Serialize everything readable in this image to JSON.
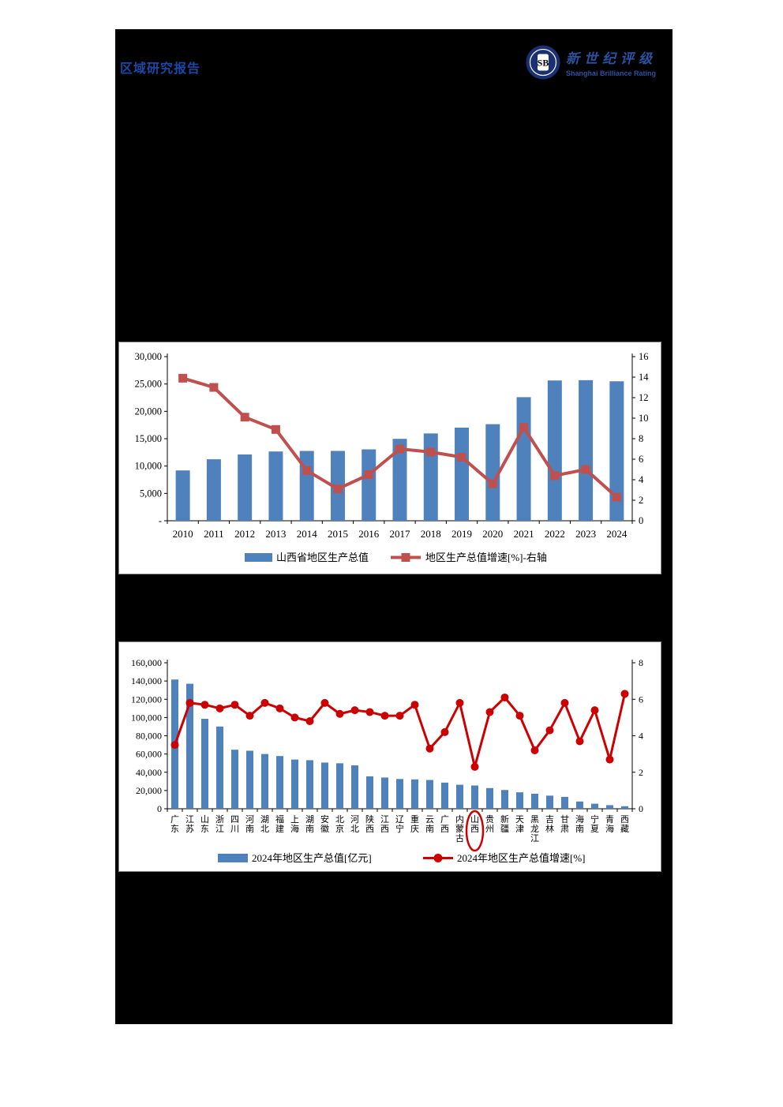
{
  "header": {
    "title": "区域研究报告"
  },
  "logo": {
    "name": "新世纪评级",
    "subtitle": "Shanghai Brilliance Rating",
    "monogram": "SB"
  },
  "colors": {
    "title_blue": "#1c47a6",
    "logo_blue": "#2a52a0",
    "seal_navy": "#1b2f73",
    "bar_blue": "#4f81bd",
    "line_red_dark": "#c0504d",
    "line_red_bright": "#cc0000",
    "page_black": "#000000",
    "panel_border_gray": "#8a8a8a"
  },
  "chart_data": [
    {
      "type": "bar",
      "combo": "bar+line",
      "title": "",
      "xlabel": "",
      "ylabel": "",
      "grid": false,
      "legend_position": "bottom",
      "categories": [
        "2010",
        "2011",
        "2012",
        "2013",
        "2014",
        "2015",
        "2016",
        "2017",
        "2018",
        "2019",
        "2020",
        "2021",
        "2022",
        "2023",
        "2024"
      ],
      "series": [
        {
          "name": "山西省地区生产总值",
          "type": "bar",
          "axis": "left",
          "color": "#4f81bd",
          "values": [
            9200.9,
            11237.6,
            12112.8,
            12665.3,
            12761.5,
            12766.5,
            13050.4,
            14973.5,
            15958.1,
            17026.7,
            17651.9,
            22590.2,
            25642.6,
            25698.2,
            25494.7
          ]
        },
        {
          "name": "地区生产总值增速[%]-右轴",
          "type": "line",
          "axis": "right",
          "marker": "square",
          "color": "#c0504d",
          "values": [
            13.9,
            13.0,
            10.1,
            8.9,
            4.9,
            3.1,
            4.5,
            7.0,
            6.7,
            6.2,
            3.6,
            9.1,
            4.4,
            5.0,
            2.3
          ]
        }
      ],
      "left_axis": {
        "min": 0,
        "max": 30000,
        "step": 5000,
        "zero_label": "-",
        "tick_labels": [
          "-",
          "5,000",
          "10,000",
          "15,000",
          "20,000",
          "25,000",
          "30,000"
        ]
      },
      "right_axis": {
        "min": 0,
        "max": 16,
        "step": 2,
        "tick_labels": [
          "0",
          "2",
          "4",
          "6",
          "8",
          "10",
          "12",
          "14",
          "16"
        ]
      }
    },
    {
      "type": "bar",
      "combo": "bar+line",
      "title": "",
      "xlabel": "",
      "ylabel": "",
      "grid": false,
      "legend_position": "bottom",
      "categories": [
        "广东",
        "江苏",
        "山东",
        "浙江",
        "四川",
        "河南",
        "湖北",
        "福建",
        "上海",
        "湖南",
        "安徽",
        "北京",
        "河北",
        "陕西",
        "江西",
        "辽宁",
        "重庆",
        "云南",
        "广西",
        "内蒙古",
        "山西",
        "贵州",
        "新疆",
        "天津",
        "黑龙江",
        "吉林",
        "甘肃",
        "海南",
        "宁夏",
        "青海",
        "西藏"
      ],
      "series": [
        {
          "name": "2024年地区生产总值[亿元]",
          "type": "bar",
          "axis": "left",
          "color": "#4f81bd",
          "values": [
            141633.8,
            137008.0,
            98566.1,
            90131.0,
            64697.0,
            63589.9,
            60012.9,
            57761.0,
            53926.7,
            53231.0,
            50625.0,
            49843.1,
            47526.9,
            35538.8,
            34202.5,
            32612.7,
            32193.2,
            31534.1,
            28649.4,
            26314.6,
            25494.7,
            22667.1,
            20534.1,
            18024.3,
            16476.9,
            14361.2,
            13002.9,
            7935.7,
            5502.8,
            3950.8,
            2764.9
          ]
        },
        {
          "name": "2024年地区生产总值增速[%]",
          "type": "line",
          "axis": "right",
          "marker": "circle",
          "color": "#cc0000",
          "values": [
            3.5,
            5.8,
            5.7,
            5.5,
            5.7,
            5.1,
            5.8,
            5.5,
            5.0,
            4.8,
            5.8,
            5.2,
            5.4,
            5.3,
            5.1,
            5.1,
            5.7,
            3.3,
            4.2,
            5.8,
            2.3,
            5.3,
            6.1,
            5.1,
            3.2,
            4.3,
            5.8,
            3.7,
            5.4,
            2.7,
            6.3
          ]
        }
      ],
      "left_axis": {
        "min": 0,
        "max": 160000,
        "step": 20000,
        "zero_label": "0",
        "tick_labels": [
          "0",
          "20,000",
          "40,000",
          "60,000",
          "80,000",
          "100,000",
          "120,000",
          "140,000",
          "160,000"
        ]
      },
      "right_axis": {
        "min": 0,
        "max": 8,
        "step": 2,
        "tick_labels": [
          "0",
          "2",
          "4",
          "6",
          "8"
        ]
      },
      "annotation": {
        "type": "ellipse",
        "category": "山西",
        "color": "#cc0000"
      }
    }
  ]
}
